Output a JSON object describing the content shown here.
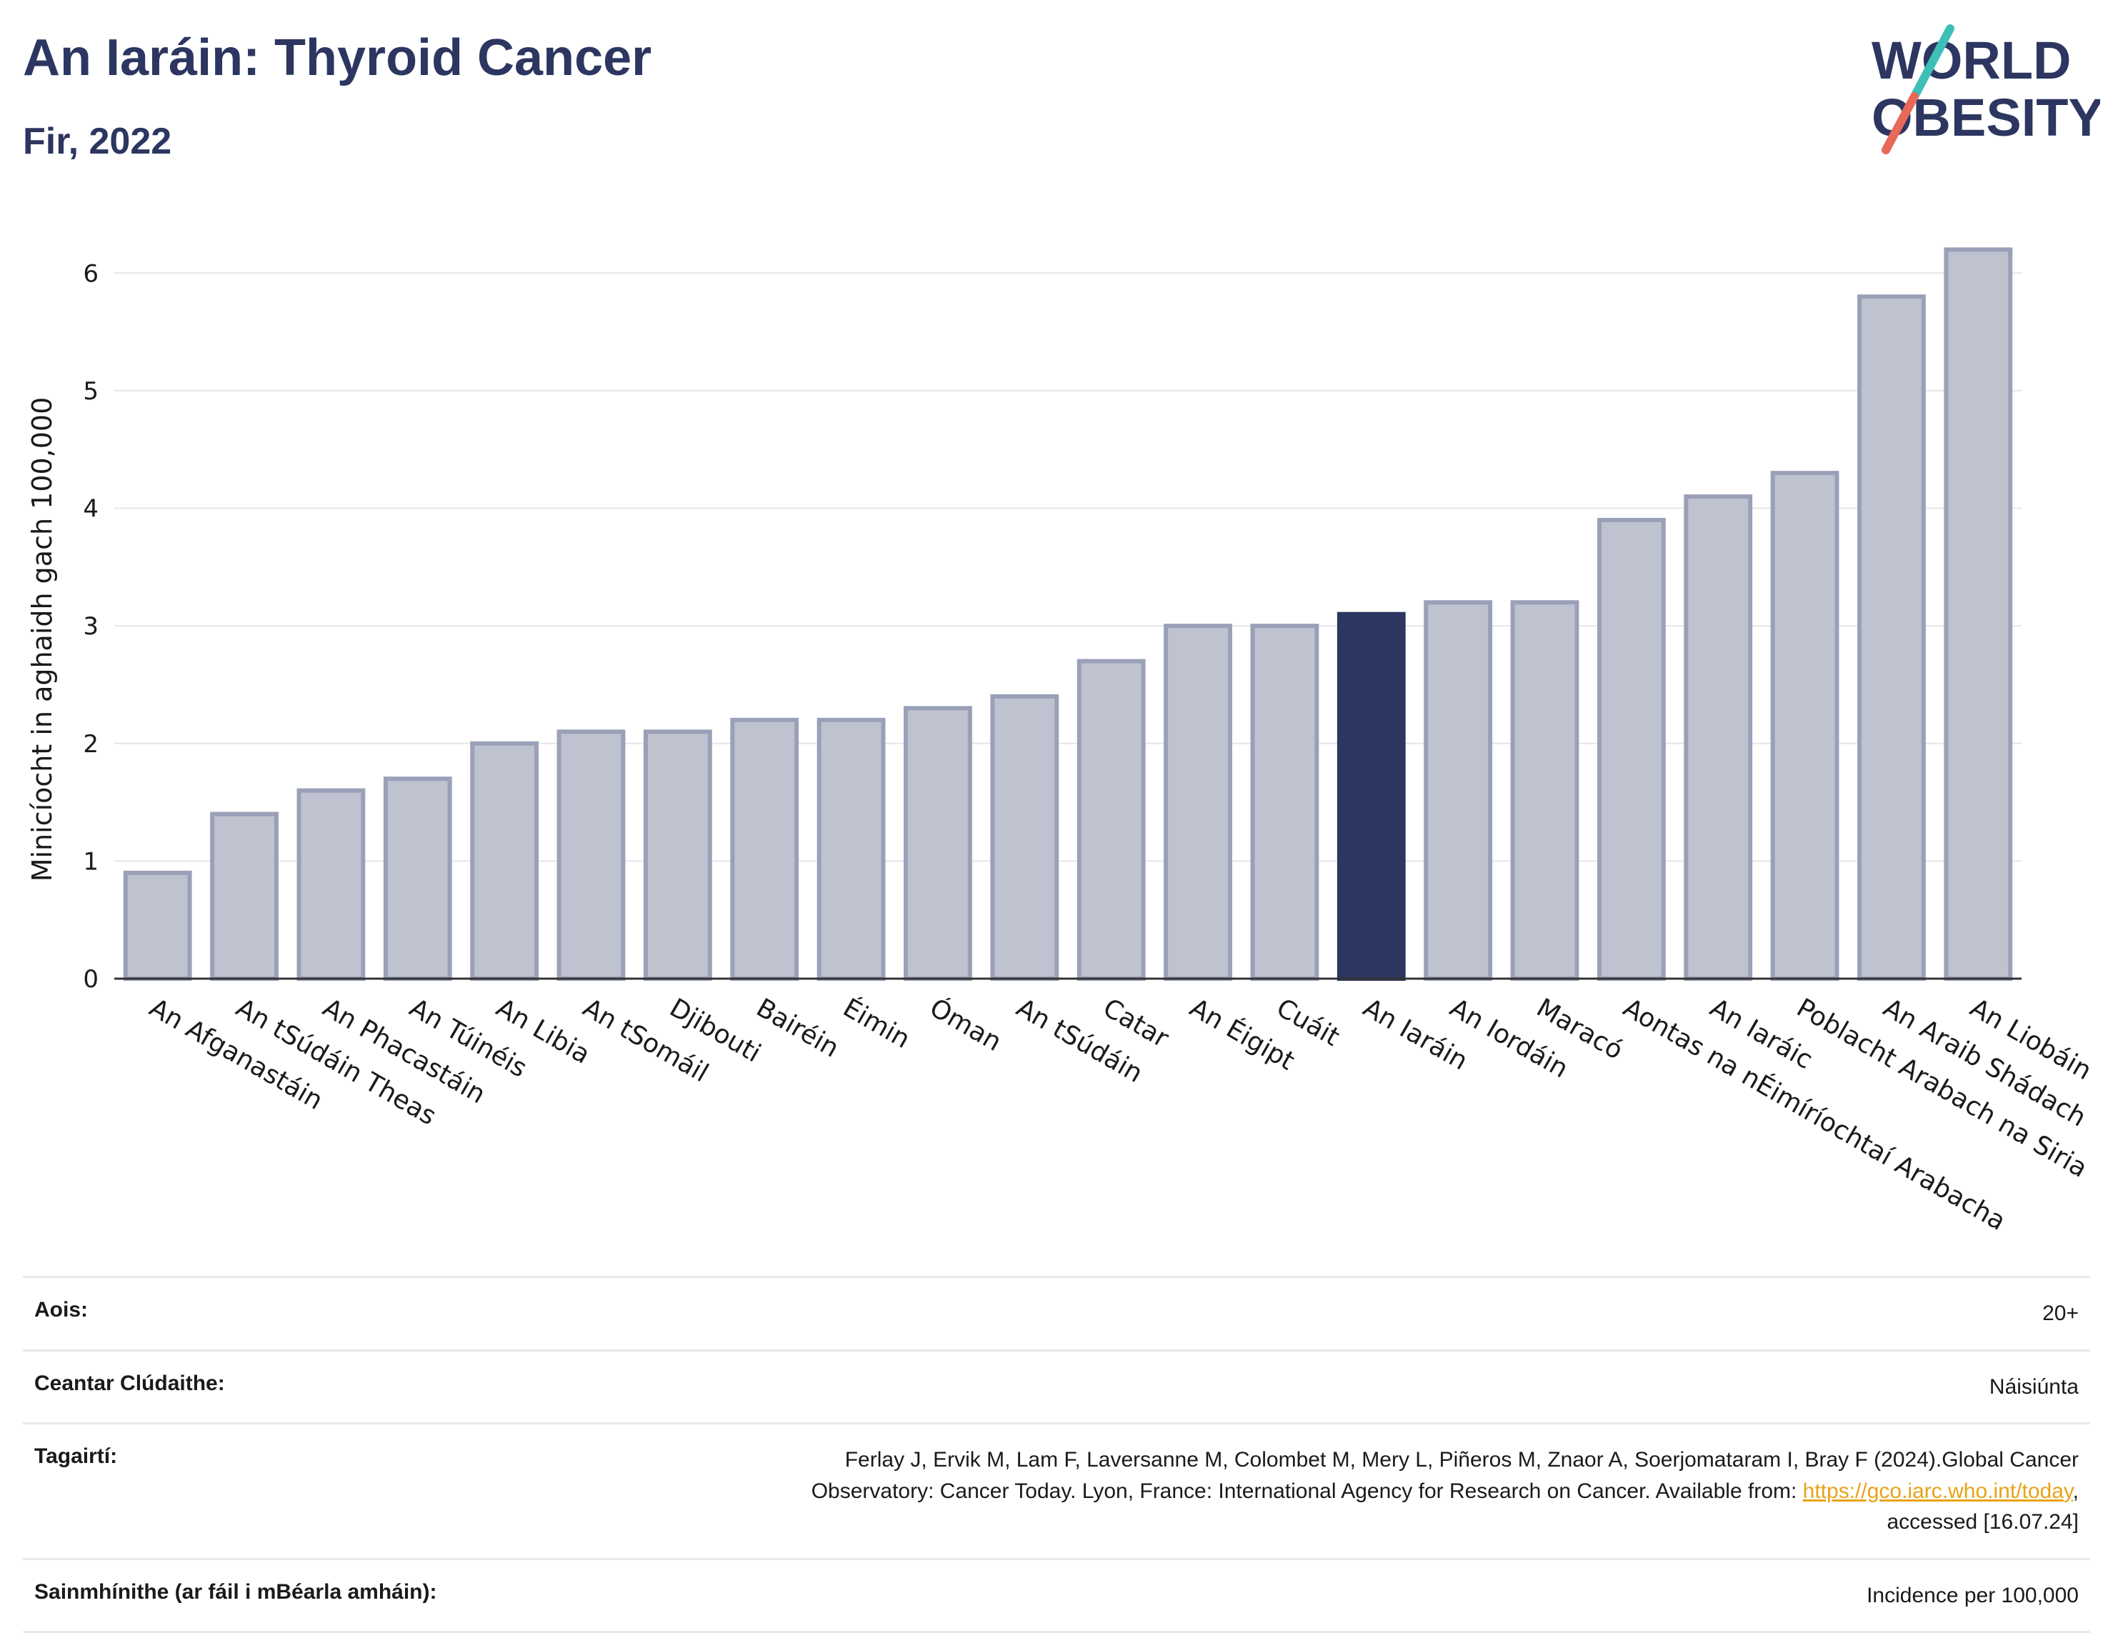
{
  "header": {
    "title": "An Iaráin: Thyroid Cancer",
    "subtitle": "Fir, 2022"
  },
  "logo": {
    "line1": "WORLD",
    "line2": "OBESITY",
    "colors": {
      "navy": "#2c3660",
      "teal": "#3dbfb8",
      "coral": "#e8685a"
    }
  },
  "chart_data": {
    "type": "bar",
    "ylabel": "Minicíocht in aghaidh gach 100,000",
    "xlabel": "",
    "ylim": [
      0,
      6.5
    ],
    "yticks": [
      0,
      1,
      2,
      3,
      4,
      5,
      6
    ],
    "grid": true,
    "highlight": "An Iaráin",
    "colors": {
      "bar": "#bfc2cf",
      "bar_edge": "#9aa0b8",
      "highlight": "#2c3660"
    },
    "categories": [
      "An Afganastáin",
      "An tSúdáin Theas",
      "An Phacastáin",
      "An Túinéis",
      "An Libia",
      "An tSomáil",
      "Djibouti",
      "Bairéin",
      "Éimin",
      "Óman",
      "An tSúdáin",
      "Catar",
      "An Éigipt",
      "Cuáit",
      "An Iaráin",
      "An Iordáin",
      "Maracó",
      "Aontas na nÉimíríochtaí Arabacha",
      "An Iaráic",
      "Poblacht Arabach na Siria",
      "An Araib Shádach",
      "An Liobáin"
    ],
    "values": [
      0.9,
      1.4,
      1.6,
      1.7,
      2.0,
      2.1,
      2.1,
      2.2,
      2.2,
      2.3,
      2.4,
      2.7,
      3.0,
      3.0,
      3.1,
      3.2,
      3.2,
      3.9,
      4.1,
      4.3,
      5.8,
      6.2
    ]
  },
  "meta": {
    "age_label": "Aois:",
    "age_value": "20+",
    "area_label": "Ceantar Clúdaithe:",
    "area_value": "Náisiúnta",
    "ref_label": "Tagairtí:",
    "ref_line1": "Ferlay J, Ervik M, Lam F, Laversanne M, Colombet M, Mery L, Piñeros M, Znaor A, Soerjomataram I, Bray F (2024).Global Cancer",
    "ref_line2": "Observatory: Cancer Today. Lyon, France: International Agency for Research on Cancer. Available from: ",
    "ref_link": "https://gco.iarc.who.int/today",
    "ref_line2_end": ",",
    "ref_line3": "accessed [16.07.24]",
    "def_label": "Sainmhínithe (ar fáil i mBéarla amháin):",
    "def_value": "Incidence per 100,000"
  }
}
